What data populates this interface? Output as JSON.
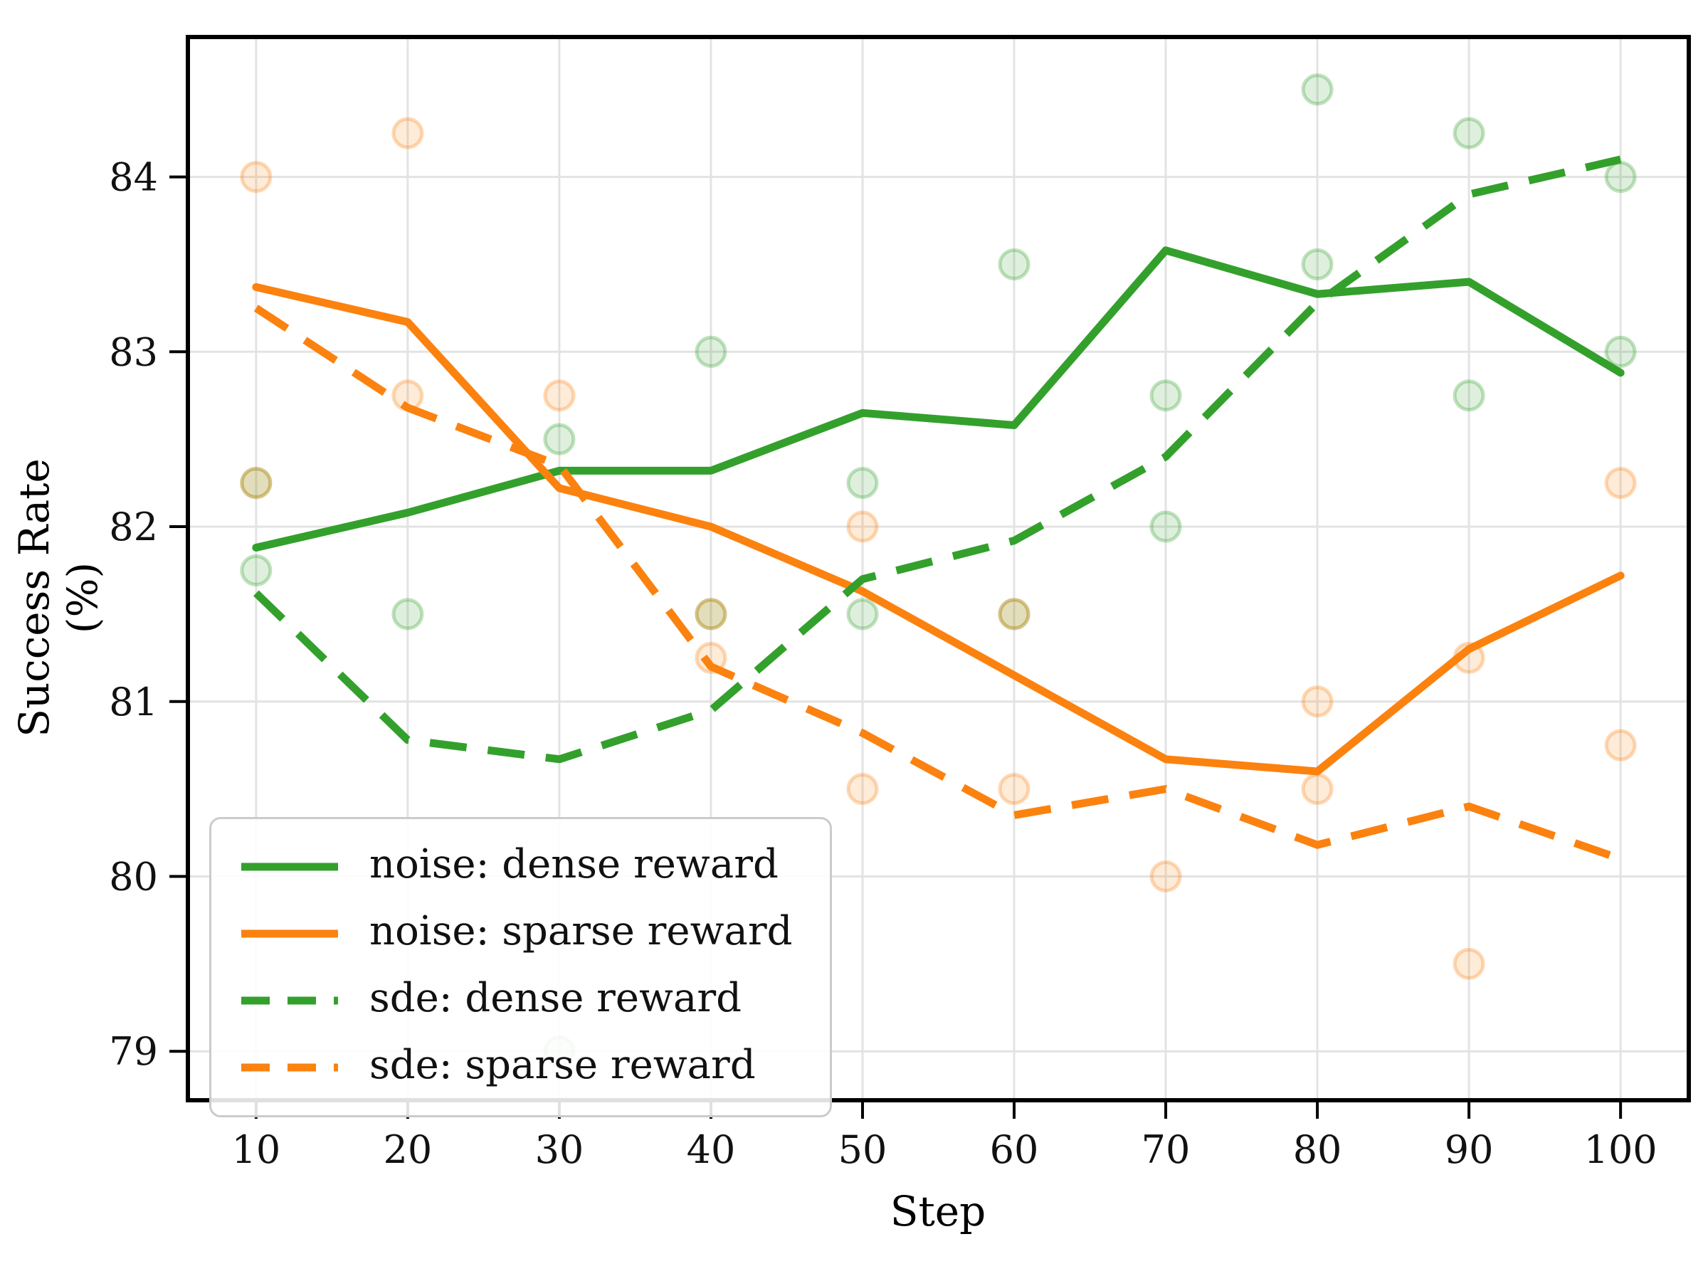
{
  "chart_data": {
    "type": "line",
    "title": "",
    "xlabel": "Step",
    "ylabel": "Success Rate (%)",
    "x": [
      10,
      20,
      30,
      40,
      50,
      60,
      70,
      80,
      90,
      100
    ],
    "xlim": [
      5.5,
      104.5
    ],
    "ylim": [
      78.72,
      84.8
    ],
    "xticks": [
      10,
      20,
      30,
      40,
      50,
      60,
      70,
      80,
      90,
      100
    ],
    "yticks": [
      79,
      80,
      81,
      82,
      83,
      84
    ],
    "grid": true,
    "legend_position": "lower left",
    "series": [
      {
        "name": "noise: dense reward",
        "style": "solid",
        "color": "#33a02c",
        "values": [
          81.88,
          82.08,
          82.32,
          82.32,
          82.65,
          82.58,
          83.58,
          83.33,
          83.4,
          82.88
        ]
      },
      {
        "name": "noise: sparse reward",
        "style": "solid",
        "color": "#fb820f",
        "values": [
          83.37,
          83.17,
          82.22,
          82.0,
          81.63,
          81.15,
          80.67,
          80.6,
          81.3,
          81.72
        ]
      },
      {
        "name": "sde: dense reward",
        "style": "dashed",
        "color": "#33a02c",
        "values": [
          81.62,
          80.78,
          80.67,
          80.95,
          81.7,
          81.92,
          82.4,
          83.28,
          83.9,
          84.1
        ]
      },
      {
        "name": "sde: sparse reward",
        "style": "dashed",
        "color": "#fb820f",
        "values": [
          83.25,
          82.68,
          82.35,
          81.2,
          80.82,
          80.35,
          80.5,
          80.18,
          80.4,
          80.1
        ]
      }
    ],
    "scatter": [
      {
        "name": "dense reward samples",
        "color": "#33a02c",
        "points": [
          [
            10,
            82.25
          ],
          [
            10,
            81.75
          ],
          [
            20,
            81.5
          ],
          [
            30,
            82.5
          ],
          [
            30,
            79.0
          ],
          [
            40,
            83.0
          ],
          [
            40,
            81.5
          ],
          [
            50,
            82.25
          ],
          [
            50,
            81.5
          ],
          [
            60,
            83.5
          ],
          [
            60,
            81.5
          ],
          [
            70,
            82.75
          ],
          [
            70,
            82.0
          ],
          [
            80,
            84.5
          ],
          [
            80,
            83.5
          ],
          [
            90,
            84.25
          ],
          [
            90,
            82.75
          ],
          [
            100,
            84.0
          ],
          [
            100,
            83.0
          ]
        ]
      },
      {
        "name": "sparse reward samples",
        "color": "#fb820f",
        "points": [
          [
            10,
            84.0
          ],
          [
            10,
            82.25
          ],
          [
            20,
            84.25
          ],
          [
            20,
            82.75
          ],
          [
            30,
            82.75
          ],
          [
            40,
            81.5
          ],
          [
            40,
            81.25
          ],
          [
            50,
            82.0
          ],
          [
            50,
            80.5
          ],
          [
            60,
            81.5
          ],
          [
            60,
            80.5
          ],
          [
            70,
            80.0
          ],
          [
            80,
            81.0
          ],
          [
            80,
            80.5
          ],
          [
            90,
            81.25
          ],
          [
            90,
            79.5
          ],
          [
            100,
            82.25
          ],
          [
            100,
            80.75
          ]
        ]
      }
    ]
  },
  "axes": {
    "grid_color": "#e3e3e3",
    "spine_color": "#000000",
    "tick_label_color": "#111111",
    "tick_font_size": 54,
    "plot_background": "#ffffff"
  }
}
